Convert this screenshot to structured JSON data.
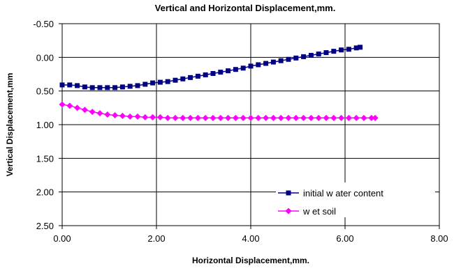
{
  "chart_data": {
    "type": "scatter",
    "title": "Vertical and Horizontal Displacement,mm.",
    "xlabel": "Horizontal Displacement,mm.",
    "ylabel": "Vertical Displacement,mm",
    "xlim": [
      0,
      8
    ],
    "ylim": [
      -0.5,
      2.5
    ],
    "y_inverted": true,
    "x_ticks": [
      "0.00",
      "2.00",
      "4.00",
      "6.00",
      "8.00"
    ],
    "x_tick_values": [
      0,
      2,
      4,
      6,
      8
    ],
    "y_ticks": [
      "-0.50",
      "0.00",
      "0.50",
      "1.00",
      "1.50",
      "2.00",
      "2.50"
    ],
    "y_tick_values": [
      -0.5,
      0,
      0.5,
      1,
      1.5,
      2,
      2.5
    ],
    "grid": true,
    "legend_position": "bottom-right",
    "series": [
      {
        "name": "initial w ater content",
        "color": "#000080",
        "marker": "square",
        "x": [
          0,
          0.16,
          0.32,
          0.48,
          0.64,
          0.8,
          0.96,
          1.12,
          1.28,
          1.44,
          1.6,
          1.76,
          1.92,
          2.08,
          2.24,
          2.4,
          2.56,
          2.72,
          2.88,
          3.04,
          3.2,
          3.36,
          3.52,
          3.68,
          3.84,
          4.0,
          4.16,
          4.32,
          4.48,
          4.64,
          4.8,
          4.96,
          5.12,
          5.28,
          5.44,
          5.6,
          5.76,
          5.92,
          6.08,
          6.24,
          6.32
        ],
        "y": [
          0.41,
          0.41,
          0.42,
          0.44,
          0.45,
          0.45,
          0.45,
          0.45,
          0.44,
          0.43,
          0.42,
          0.4,
          0.38,
          0.37,
          0.36,
          0.34,
          0.32,
          0.3,
          0.28,
          0.26,
          0.24,
          0.22,
          0.2,
          0.18,
          0.16,
          0.13,
          0.11,
          0.09,
          0.07,
          0.05,
          0.03,
          0.01,
          -0.01,
          -0.03,
          -0.05,
          -0.07,
          -0.09,
          -0.11,
          -0.12,
          -0.14,
          -0.15
        ]
      },
      {
        "name": "w et soil",
        "color": "#FF00FF",
        "marker": "diamond",
        "x": [
          0,
          0.16,
          0.32,
          0.48,
          0.64,
          0.8,
          0.96,
          1.12,
          1.28,
          1.44,
          1.6,
          1.76,
          1.92,
          2.08,
          2.24,
          2.4,
          2.56,
          2.72,
          2.88,
          3.04,
          3.2,
          3.36,
          3.52,
          3.68,
          3.84,
          4.0,
          4.16,
          4.32,
          4.48,
          4.64,
          4.8,
          4.96,
          5.12,
          5.28,
          5.44,
          5.6,
          5.76,
          5.92,
          6.08,
          6.24,
          6.4,
          6.56,
          6.64
        ],
        "y": [
          0.7,
          0.72,
          0.75,
          0.78,
          0.81,
          0.83,
          0.85,
          0.86,
          0.87,
          0.88,
          0.88,
          0.89,
          0.89,
          0.89,
          0.9,
          0.9,
          0.9,
          0.9,
          0.9,
          0.9,
          0.9,
          0.9,
          0.9,
          0.9,
          0.9,
          0.9,
          0.9,
          0.9,
          0.9,
          0.9,
          0.9,
          0.9,
          0.9,
          0.9,
          0.9,
          0.9,
          0.9,
          0.9,
          0.9,
          0.9,
          0.9,
          0.9,
          0.9
        ]
      }
    ]
  }
}
